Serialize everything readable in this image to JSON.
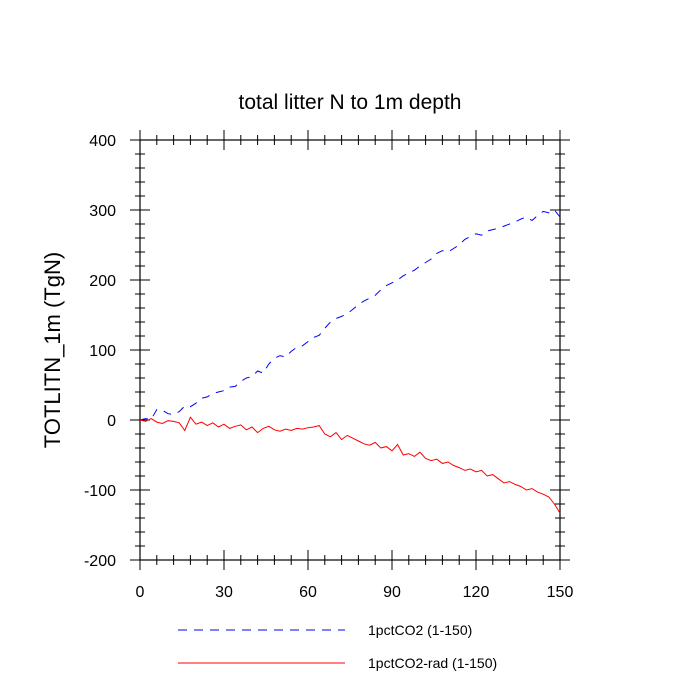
{
  "chart_data": {
    "type": "line",
    "title": "total litter N to 1m depth",
    "xlabel": "",
    "ylabel": "TOTLITN_1m  (TgN)",
    "xlim": [
      0,
      150
    ],
    "ylim": [
      -200,
      400
    ],
    "xticks": [
      0,
      30,
      60,
      90,
      120,
      150
    ],
    "yticks": [
      -200,
      -100,
      0,
      100,
      200,
      300,
      400
    ],
    "grid": false,
    "legend_position": "bottom",
    "series": [
      {
        "name": "1pctCO2 (1-150)",
        "color": "#0000ff",
        "dash": "dashed",
        "x": [
          0,
          2,
          4,
          6,
          8,
          10,
          12,
          14,
          16,
          18,
          20,
          22,
          24,
          26,
          28,
          30,
          32,
          34,
          36,
          38,
          40,
          42,
          44,
          46,
          48,
          50,
          52,
          54,
          56,
          58,
          60,
          62,
          64,
          66,
          68,
          70,
          72,
          74,
          76,
          78,
          80,
          82,
          84,
          86,
          88,
          90,
          92,
          94,
          96,
          98,
          100,
          102,
          104,
          106,
          108,
          110,
          112,
          114,
          116,
          118,
          120,
          122,
          124,
          126,
          128,
          130,
          132,
          134,
          136,
          138,
          140,
          142,
          144,
          146,
          148,
          150
        ],
        "y": [
          0,
          2,
          1,
          15,
          14,
          9,
          8,
          12,
          20,
          19,
          24,
          31,
          33,
          38,
          40,
          42,
          47,
          48,
          55,
          60,
          62,
          70,
          67,
          80,
          88,
          92,
          90,
          98,
          104,
          106,
          112,
          118,
          121,
          131,
          140,
          145,
          148,
          152,
          158,
          165,
          170,
          174,
          178,
          186,
          192,
          196,
          200,
          206,
          210,
          214,
          220,
          225,
          230,
          238,
          242,
          240,
          245,
          250,
          258,
          262,
          266,
          264,
          270,
          272,
          274,
          277,
          280,
          283,
          287,
          290,
          285,
          292,
          298,
          296,
          300,
          290
        ]
      },
      {
        "name": "1pctCO2-rad (1-150)",
        "color": "#ff0000",
        "dash": "solid",
        "x": [
          0,
          2,
          4,
          6,
          8,
          10,
          12,
          14,
          16,
          18,
          20,
          22,
          24,
          26,
          28,
          30,
          32,
          34,
          36,
          38,
          40,
          42,
          44,
          46,
          48,
          50,
          52,
          54,
          56,
          58,
          60,
          62,
          64,
          66,
          68,
          70,
          72,
          74,
          76,
          78,
          80,
          82,
          84,
          86,
          88,
          90,
          92,
          94,
          96,
          98,
          100,
          102,
          104,
          106,
          108,
          110,
          112,
          114,
          116,
          118,
          120,
          122,
          124,
          126,
          128,
          130,
          132,
          134,
          136,
          138,
          140,
          142,
          144,
          146,
          148,
          150
        ],
        "y": [
          0,
          -2,
          2,
          -3,
          -5,
          -1,
          -2,
          -4,
          -15,
          4,
          -6,
          -3,
          -8,
          -4,
          -10,
          -6,
          -12,
          -9,
          -7,
          -14,
          -10,
          -18,
          -12,
          -9,
          -14,
          -16,
          -13,
          -15,
          -12,
          -13,
          -11,
          -10,
          -8,
          -20,
          -24,
          -18,
          -28,
          -22,
          -26,
          -30,
          -34,
          -36,
          -32,
          -40,
          -38,
          -44,
          -35,
          -50,
          -48,
          -52,
          -46,
          -55,
          -58,
          -56,
          -62,
          -60,
          -65,
          -68,
          -72,
          -70,
          -74,
          -72,
          -80,
          -78,
          -84,
          -90,
          -88,
          -92,
          -95,
          -100,
          -98,
          -103,
          -106,
          -110,
          -120,
          -133
        ]
      }
    ]
  }
}
